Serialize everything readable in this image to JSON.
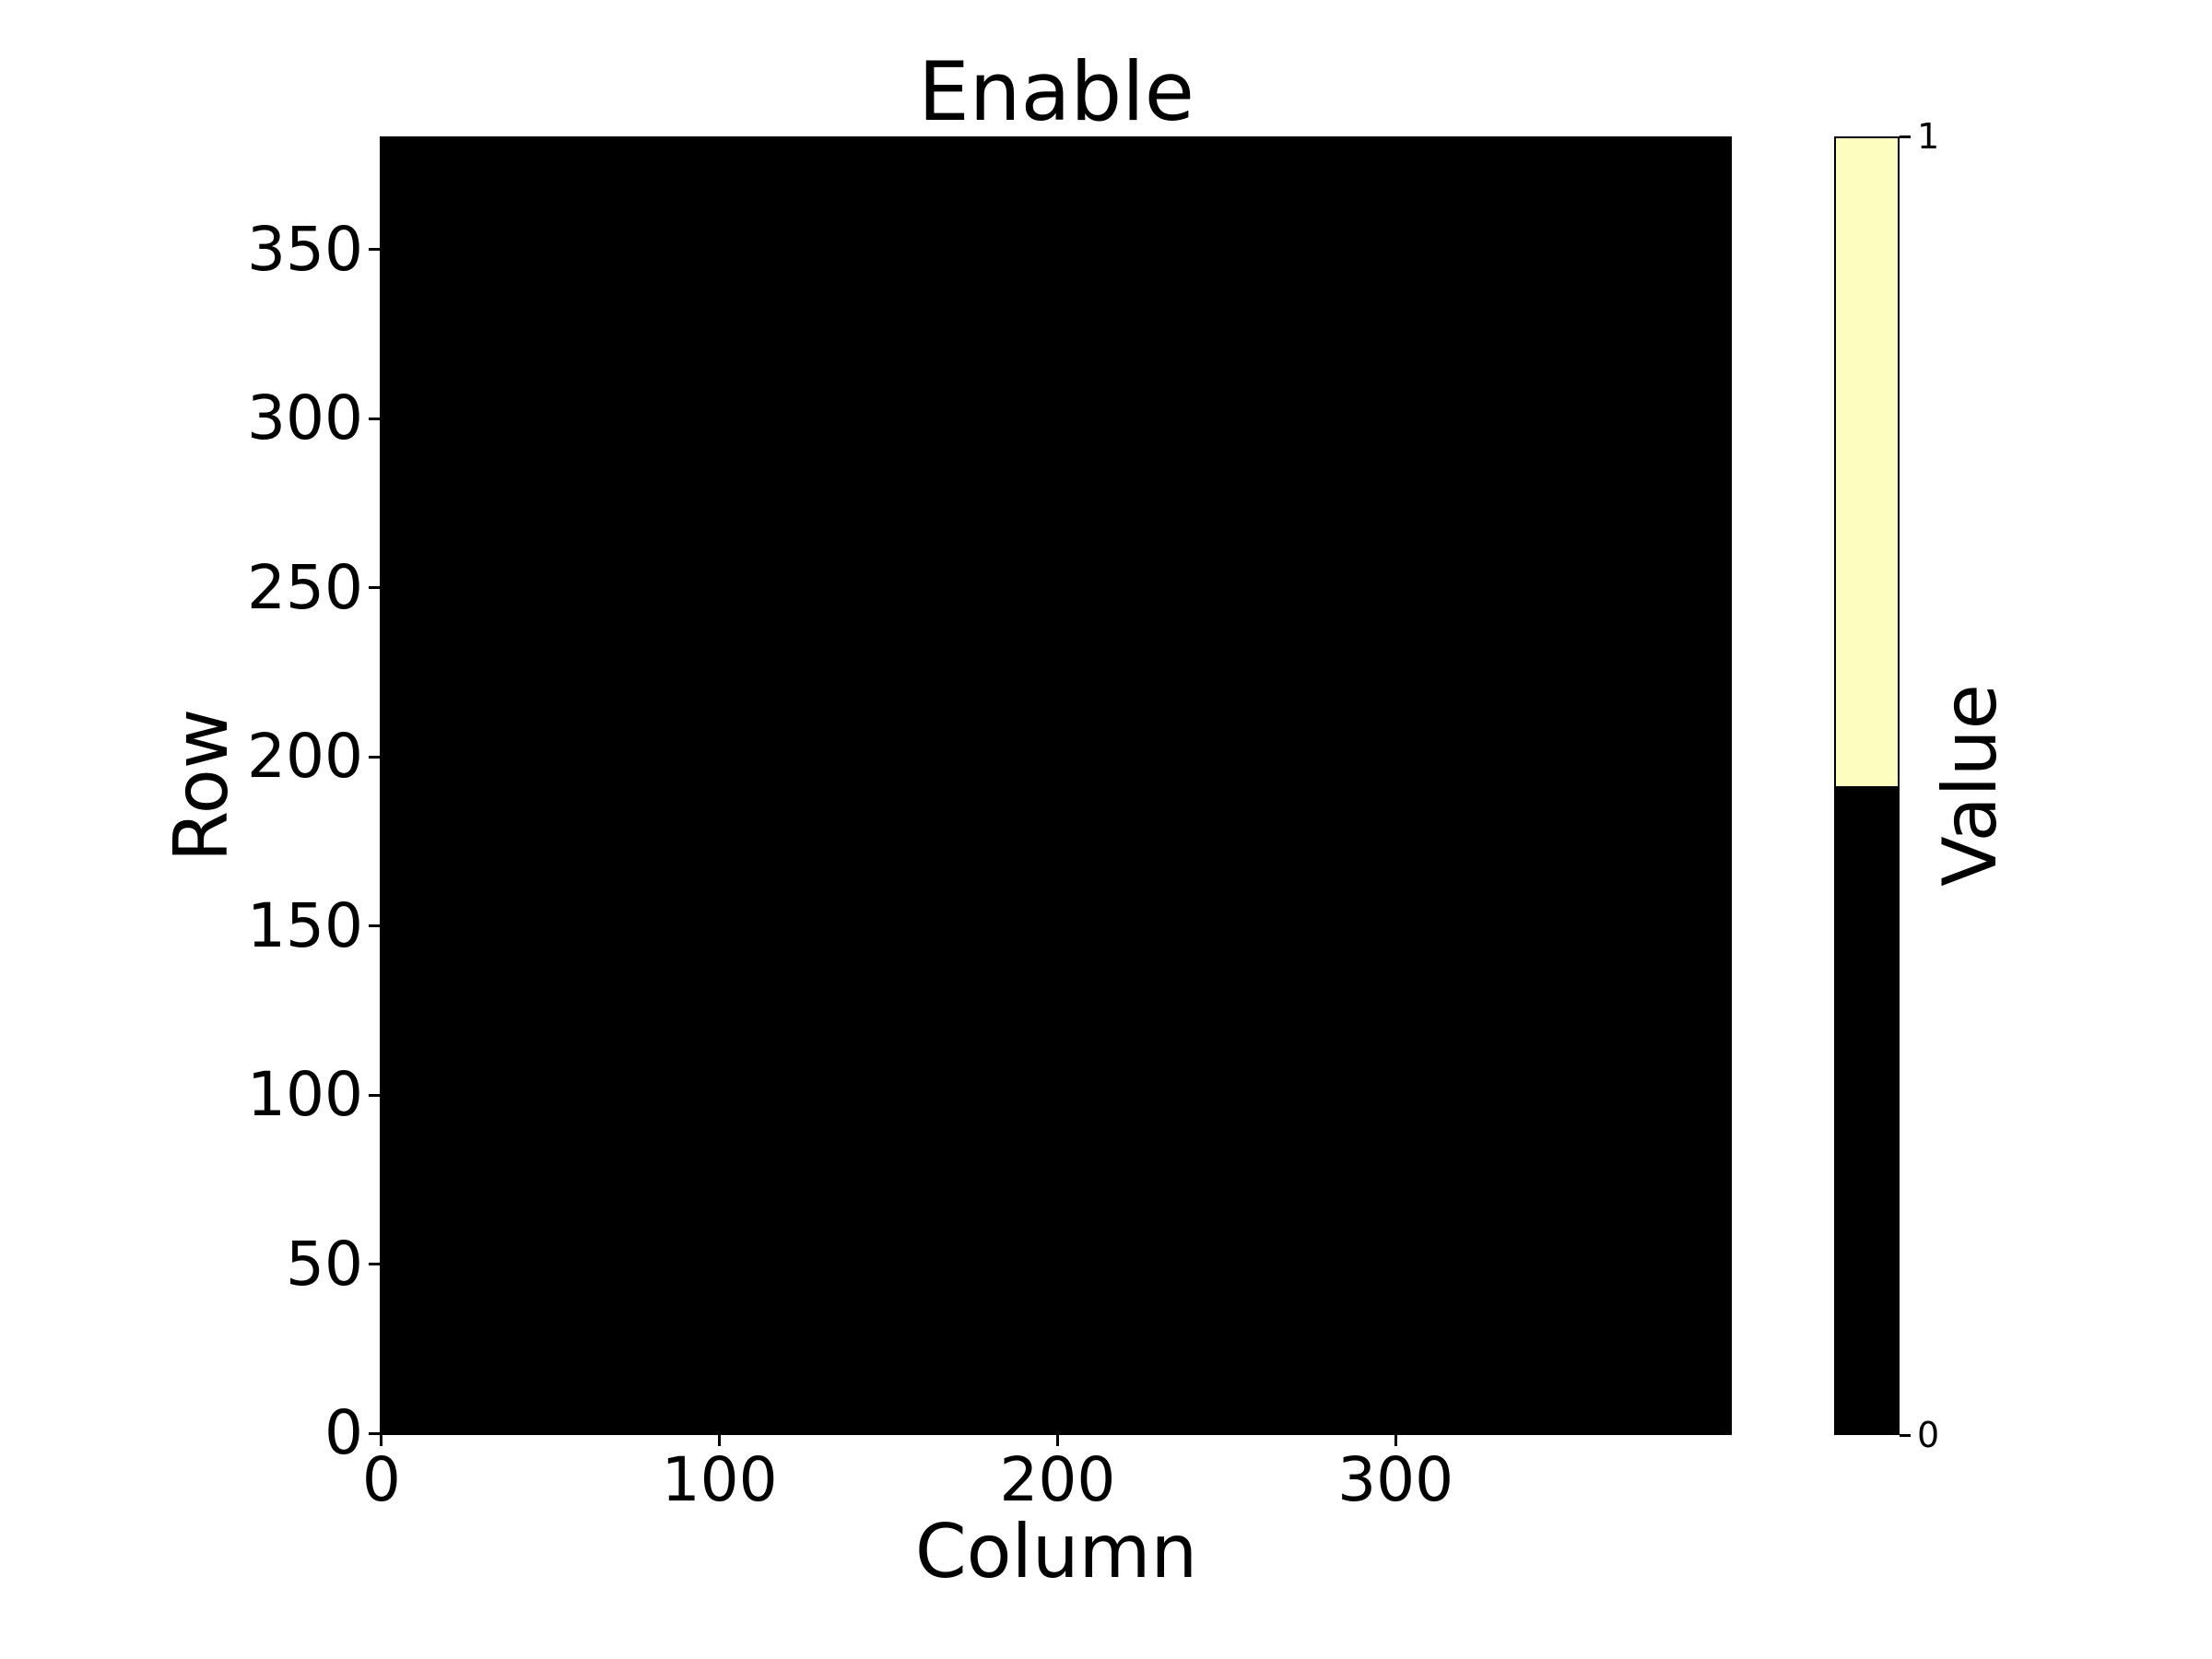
{
  "figure": {
    "background_color": "#ffffff",
    "text_color": "#000000"
  },
  "chart_data": {
    "type": "heatmap",
    "title": "Enable",
    "xlabel": "Column",
    "ylabel": "Row",
    "colorbar_label": "Value",
    "x_ticks": [
      0,
      100,
      200,
      300
    ],
    "y_ticks": [
      0,
      50,
      100,
      150,
      200,
      250,
      300,
      350
    ],
    "colorbar_ticks": [
      0,
      1
    ],
    "n_rows": 384,
    "n_cols": 400,
    "x_range": [
      -0.5,
      399.5
    ],
    "y_range": [
      -0.5,
      383.5
    ],
    "origin": "lower",
    "grid": false,
    "legend_position": "colorbar-right",
    "uniform_value": 0,
    "values_summary": "all cells = 0 (entire heatmap rendered black)",
    "value_colors": {
      "0": "#000000",
      "1": "#FCFDBF"
    }
  }
}
